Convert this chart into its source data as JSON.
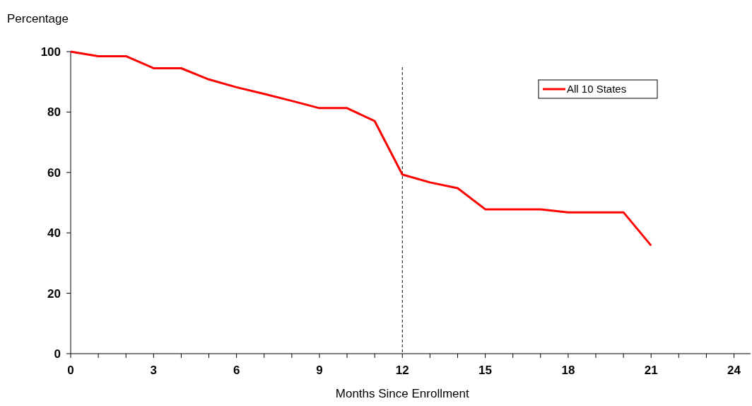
{
  "chart_data": {
    "type": "line",
    "ylabel": "Percentage",
    "xlabel": "Months Since Enrollment",
    "x": [
      0,
      1,
      2,
      3,
      4,
      5,
      6,
      7,
      8,
      9,
      10,
      11,
      12,
      13,
      14,
      15,
      16,
      17,
      18,
      19,
      20,
      21
    ],
    "series": [
      {
        "name": "All 10 States",
        "color": "#ff0000",
        "values": [
          100,
          98.5,
          98.5,
          94.5,
          94.5,
          90.8,
          88.2,
          86,
          83.7,
          81.3,
          81.3,
          77,
          59.3,
          56.7,
          54.8,
          47.8,
          47.8,
          47.8,
          46.8,
          46.8,
          46.8,
          35.8
        ]
      }
    ],
    "xlim": [
      0,
      24.6
    ],
    "xticks": [
      0,
      {
        "value": 1,
        "label": null
      },
      {
        "value": 2,
        "label": null
      },
      3,
      {
        "value": 4,
        "label": null
      },
      {
        "value": 5,
        "label": null
      },
      6,
      {
        "value": 7,
        "label": null
      },
      {
        "value": 8,
        "label": null
      },
      9,
      {
        "value": 10,
        "label": null
      },
      {
        "value": 11,
        "label": null
      },
      12,
      {
        "value": 13,
        "label": null
      },
      {
        "value": 14,
        "label": null
      },
      15,
      {
        "value": 16,
        "label": null
      },
      {
        "value": 17,
        "label": null
      },
      18,
      {
        "value": 19,
        "label": null
      },
      {
        "value": 20,
        "label": null
      },
      21,
      {
        "value": 22,
        "label": null
      },
      {
        "value": 23,
        "label": null
      },
      24
    ],
    "ylim": [
      0,
      100
    ],
    "yticks": [
      0,
      20,
      40,
      60,
      80,
      100
    ],
    "ref_lines": [
      {
        "axis": "x",
        "value": 12,
        "color": "#000000",
        "line_style": "dashed"
      }
    ],
    "legend": "top right",
    "grid": false
  }
}
